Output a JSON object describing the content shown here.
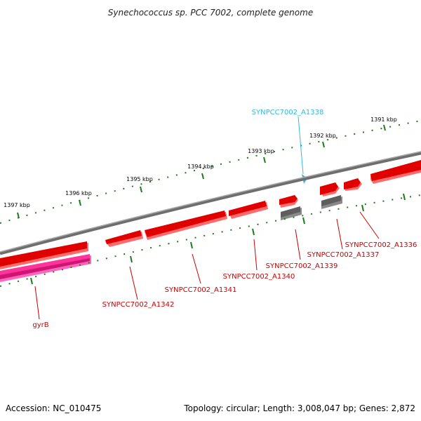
{
  "title": "Synechococcus sp. PCC 7002, complete genome",
  "footer": {
    "accession": "Accession: NC_010475",
    "summary": "Topology: circular; Length: 3,008,047 bp; Genes: 2,872"
  },
  "ruler_labels": [
    "1391 kbp",
    "1392 kbp",
    "1393 kbp",
    "1394 kbp",
    "1395 kbp",
    "1396 kbp",
    "1397 kbp"
  ],
  "genes": [
    {
      "label": "SYNPCC7002_A1338",
      "color": "#33bbdd",
      "strand": "+",
      "type": "marker"
    },
    {
      "label": "SYNPCC7002_A1336",
      "color": "#cc0000",
      "strand": "-",
      "type": "CDS"
    },
    {
      "label": "SYNPCC7002_A1337",
      "color": "#cc0000",
      "strand": "-",
      "type": "CDS"
    },
    {
      "label": "SYNPCC7002_A1339",
      "color": "#cc0000",
      "strand": "-",
      "type": "CDS"
    },
    {
      "label": "SYNPCC7002_A1340",
      "color": "#cc0000",
      "strand": "-",
      "type": "CDS"
    },
    {
      "label": "SYNPCC7002_A1341",
      "color": "#cc0000",
      "strand": "-",
      "type": "CDS"
    },
    {
      "label": "SYNPCC7002_A1342",
      "color": "#cc0000",
      "strand": "-",
      "type": "CDS"
    },
    {
      "label": "gyrB",
      "color": "#cc0000",
      "strand": "-",
      "type": "CDS"
    }
  ],
  "colors": {
    "backbone": "#808080",
    "cds": "#e00000",
    "cds_highlight": "#ff3a3a",
    "cds_shadow": "#ff7070",
    "gene_gray": "#606060",
    "gene_pink": "#ff3399",
    "gene_pink_dark": "#b0005a",
    "ruler": "#1f7a1f",
    "marker": "#33bbdd",
    "label_red": "#cc0000"
  }
}
